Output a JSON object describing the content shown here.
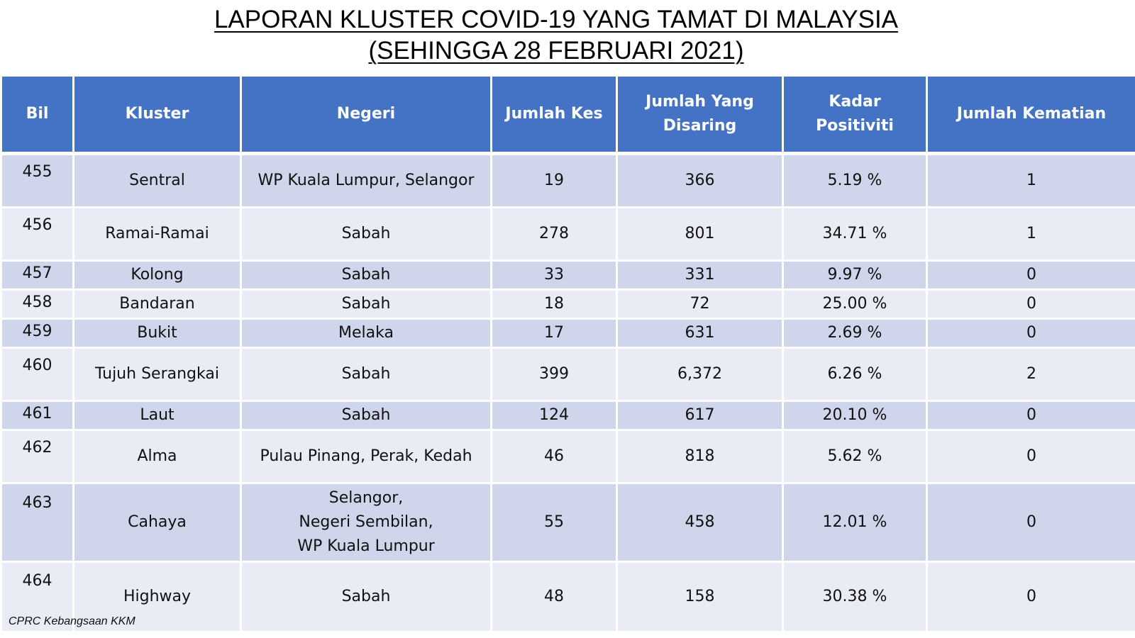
{
  "title": {
    "line1": "LAPORAN KLUSTER COVID-19 YANG TAMAT DI MALAYSIA",
    "line2": "(SEHINGGA 28 FEBRUARI 2021)"
  },
  "table": {
    "headers": [
      "Bil",
      "Kluster",
      "Negeri",
      "Jumlah Kes",
      "Jumlah Yang Disaring",
      "Kadar Positiviti",
      "Jumlah Kematian"
    ],
    "rows": [
      {
        "bil": "455",
        "kluster": "Sentral",
        "negeri": [
          "WP Kuala Lumpur, Selangor"
        ],
        "jumlah_kes": "19",
        "jumlah_disaring": "366",
        "kadar_positiviti": "5.19 %",
        "jumlah_kematian": "1"
      },
      {
        "bil": "456",
        "kluster": "Ramai-Ramai",
        "negeri": [
          "Sabah"
        ],
        "jumlah_kes": "278",
        "jumlah_disaring": "801",
        "kadar_positiviti": "34.71 %",
        "jumlah_kematian": "1"
      },
      {
        "bil": "457",
        "kluster": "Kolong",
        "negeri": [
          "Sabah"
        ],
        "jumlah_kes": "33",
        "jumlah_disaring": "331",
        "kadar_positiviti": "9.97 %",
        "jumlah_kematian": "0"
      },
      {
        "bil": "458",
        "kluster": "Bandaran",
        "negeri": [
          "Sabah"
        ],
        "jumlah_kes": "18",
        "jumlah_disaring": "72",
        "kadar_positiviti": "25.00 %",
        "jumlah_kematian": "0"
      },
      {
        "bil": "459",
        "kluster": "Bukit",
        "negeri": [
          "Melaka"
        ],
        "jumlah_kes": "17",
        "jumlah_disaring": "631",
        "kadar_positiviti": "2.69 %",
        "jumlah_kematian": "0"
      },
      {
        "bil": "460",
        "kluster": "Tujuh Serangkai",
        "negeri": [
          "Sabah"
        ],
        "jumlah_kes": "399",
        "jumlah_disaring": "6,372",
        "kadar_positiviti": "6.26 %",
        "jumlah_kematian": "2"
      },
      {
        "bil": "461",
        "kluster": "Laut",
        "negeri": [
          "Sabah"
        ],
        "jumlah_kes": "124",
        "jumlah_disaring": "617",
        "kadar_positiviti": "20.10 %",
        "jumlah_kematian": "0"
      },
      {
        "bil": "462",
        "kluster": "Alma",
        "negeri": [
          "Pulau Pinang, Perak, Kedah"
        ],
        "jumlah_kes": "46",
        "jumlah_disaring": "818",
        "kadar_positiviti": "5.62  %",
        "jumlah_kematian": "0"
      },
      {
        "bil": "463",
        "kluster": "Cahaya",
        "negeri": [
          "Selangor,",
          "Negeri Sembilan,",
          "WP Kuala Lumpur"
        ],
        "jumlah_kes": "55",
        "jumlah_disaring": "458",
        "kadar_positiviti": "12.01 %",
        "jumlah_kematian": "0"
      },
      {
        "bil": "464",
        "kluster": "Highway",
        "negeri": [
          "Sabah"
        ],
        "jumlah_kes": "48",
        "jumlah_disaring": "158",
        "kadar_positiviti": "30.38 %",
        "jumlah_kematian": "0"
      }
    ]
  },
  "footer": {
    "source": "CPRC Kebangsaan KKM"
  },
  "colors": {
    "header_bg": "#4472c4",
    "row_odd_bg": "#cfd5ea",
    "row_even_bg": "#e9ebf5"
  }
}
